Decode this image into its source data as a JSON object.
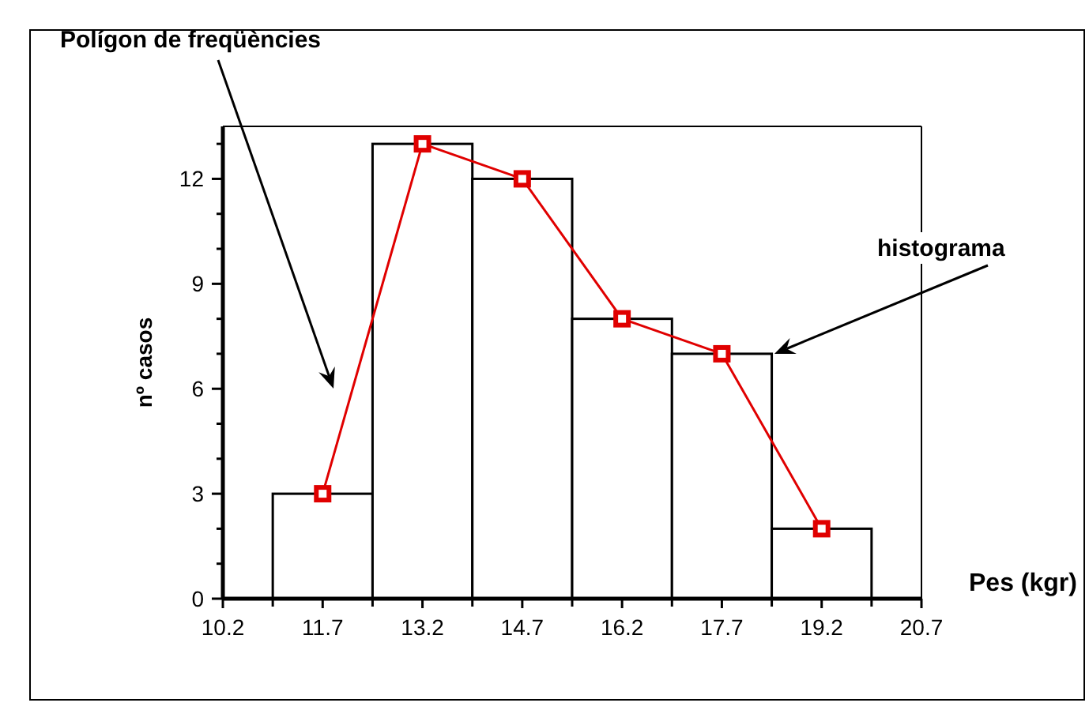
{
  "chart_data": {
    "type": "histogram",
    "xlabel": "Pes (kgr)",
    "ylabel": "nº casos",
    "xlim": [
      10.2,
      20.7
    ],
    "xticks": [
      10.2,
      {
        "value": 10.95,
        "label": null
      },
      11.7,
      {
        "value": 12.45,
        "label": null
      },
      13.2,
      {
        "value": 13.95,
        "label": null
      },
      14.7,
      {
        "value": 15.45,
        "label": null
      },
      16.2,
      {
        "value": 16.95,
        "label": null
      },
      17.7,
      {
        "value": 18.45,
        "label": null
      },
      19.2,
      {
        "value": 19.95,
        "label": null
      },
      20.7
    ],
    "ylim": [
      0,
      13.5
    ],
    "yticks": [
      0,
      {
        "value": 1,
        "label": null
      },
      {
        "value": 2,
        "label": null
      },
      3,
      {
        "value": 4,
        "label": null
      },
      {
        "value": 5,
        "label": null
      },
      6,
      {
        "value": 7,
        "label": null
      },
      {
        "value": 8,
        "label": null
      },
      9,
      {
        "value": 10,
        "label": null
      },
      {
        "value": 11,
        "label": null
      },
      12,
      {
        "value": 13,
        "label": null
      }
    ],
    "grid": false,
    "marker": "square",
    "line_style": "solid",
    "series": [
      {
        "bins": [
          10.95,
          12.45,
          13.95,
          15.45,
          16.95,
          18.45,
          19.95
        ],
        "values": [
          3,
          13,
          12,
          8,
          7,
          2
        ],
        "color": "#ffffff"
      },
      {
        "type": "line",
        "x": [
          11.7,
          13.2,
          14.7,
          16.2,
          17.7,
          19.2
        ],
        "values": [
          3,
          13,
          12,
          8,
          7,
          2
        ],
        "color": "#e00000"
      }
    ],
    "annotations": [
      "Polígon de freqüències",
      {
        "text": "histograma",
        "x": 18.49,
        "y": 7
      }
    ]
  }
}
